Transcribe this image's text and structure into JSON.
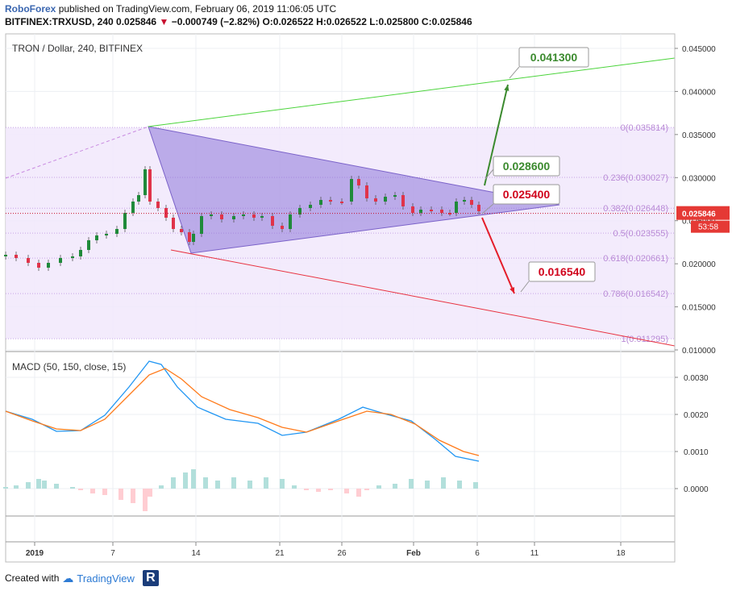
{
  "header": {
    "line1_brand": "RoboForex",
    "line1_text": "published on TradingView.com, February 06, 2019 11:06:05 UTC",
    "line2_symbol": "BITFINEX:TRXUSD, 240",
    "line2_price": "0.025846",
    "line2_change": "−0.000749 (−2.82%)",
    "line2_ohlc": "O:0.026522 H:0.026522 L:0.025800 C:0.025846"
  },
  "main_pane": {
    "title": "TRON / Dollar, 240, BITFINEX",
    "price_ticks": [
      "0.045000",
      "0.040000",
      "0.035000",
      "0.030000",
      "0.025000",
      "0.020000",
      "0.015000",
      "0.010000"
    ],
    "last_price": "0.025846",
    "countdown": "53:58",
    "fib_labels": [
      "0(0.035814)",
      "0.236(0.030027)",
      "0.382(0.026448)",
      "0.5(0.023555)",
      "0.618(0.020661)",
      "0.786(0.016542)",
      "1(0.011295)"
    ],
    "targets": [
      "0.041300",
      "0.028600",
      "0.025400",
      "0.016540"
    ],
    "colors": {
      "up": "#26a69a",
      "down": "#ef5350",
      "candle_up": "#1f8a3a",
      "candle_down": "#e0334a",
      "triangle": "#8c76d8",
      "fib_fill": "#f1e7fb",
      "bull": "#3b8a2e",
      "bear": "#e41d2a"
    }
  },
  "macd_pane": {
    "title": "MACD (50, 150, close, 15)",
    "ticks": [
      "0.0030",
      "0.0020",
      "0.0010",
      "0.0000"
    ]
  },
  "x_axis": {
    "labels": [
      "2019",
      "7",
      "14",
      "21",
      "26",
      "Feb",
      "6",
      "11",
      "18"
    ]
  },
  "footer": {
    "created_with": "Created with",
    "brand": "TradingView"
  }
}
